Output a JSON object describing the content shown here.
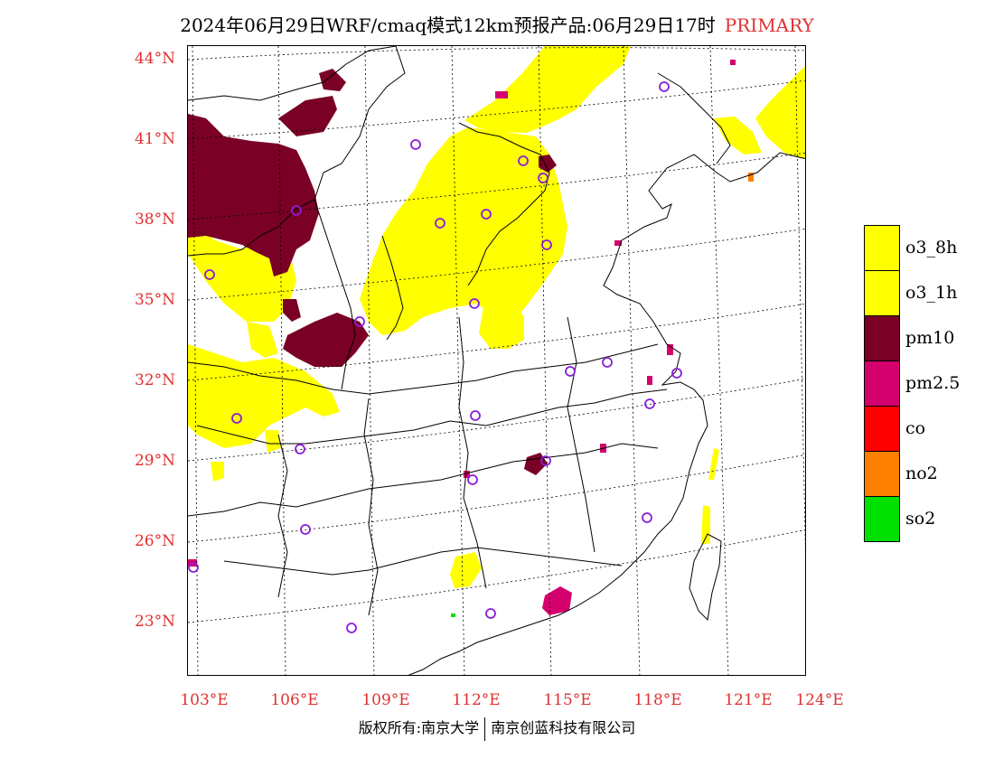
{
  "title": {
    "main": "2024年06月29日WRF/cmaq模式12km预报产品:06月29日17时",
    "tag": "PRIMARY"
  },
  "lat_labels": [
    "44°N",
    "41°N",
    "38°N",
    "35°N",
    "32°N",
    "29°N",
    "26°N",
    "23°N"
  ],
  "lon_labels": [
    "103°E",
    "106°E",
    "109°E",
    "112°E",
    "115°E",
    "118°E",
    "121°E",
    "124°E"
  ],
  "legend": [
    {
      "label": "o3_8h",
      "color": "#ffff00"
    },
    {
      "label": "o3_1h",
      "color": "#ffff00"
    },
    {
      "label": "pm10",
      "color": "#7a0026"
    },
    {
      "label": "pm2.5",
      "color": "#d4006e"
    },
    {
      "label": "co",
      "color": "#ff0000"
    },
    {
      "label": "no2",
      "color": "#ff7f00"
    },
    {
      "label": "so2",
      "color": "#00e000"
    }
  ],
  "footer": {
    "left": "版权所有:南京大学",
    "right": "南京创蓝科技有限公司"
  },
  "colors": {
    "o3": "#ffff00",
    "pm10": "#7a0026",
    "pm25": "#d4006e",
    "co": "#ff0000",
    "no2": "#ff7f00",
    "so2": "#00e000",
    "station": "#8a1ed6",
    "label_red": "#e03030"
  },
  "stations_shown": 30
}
